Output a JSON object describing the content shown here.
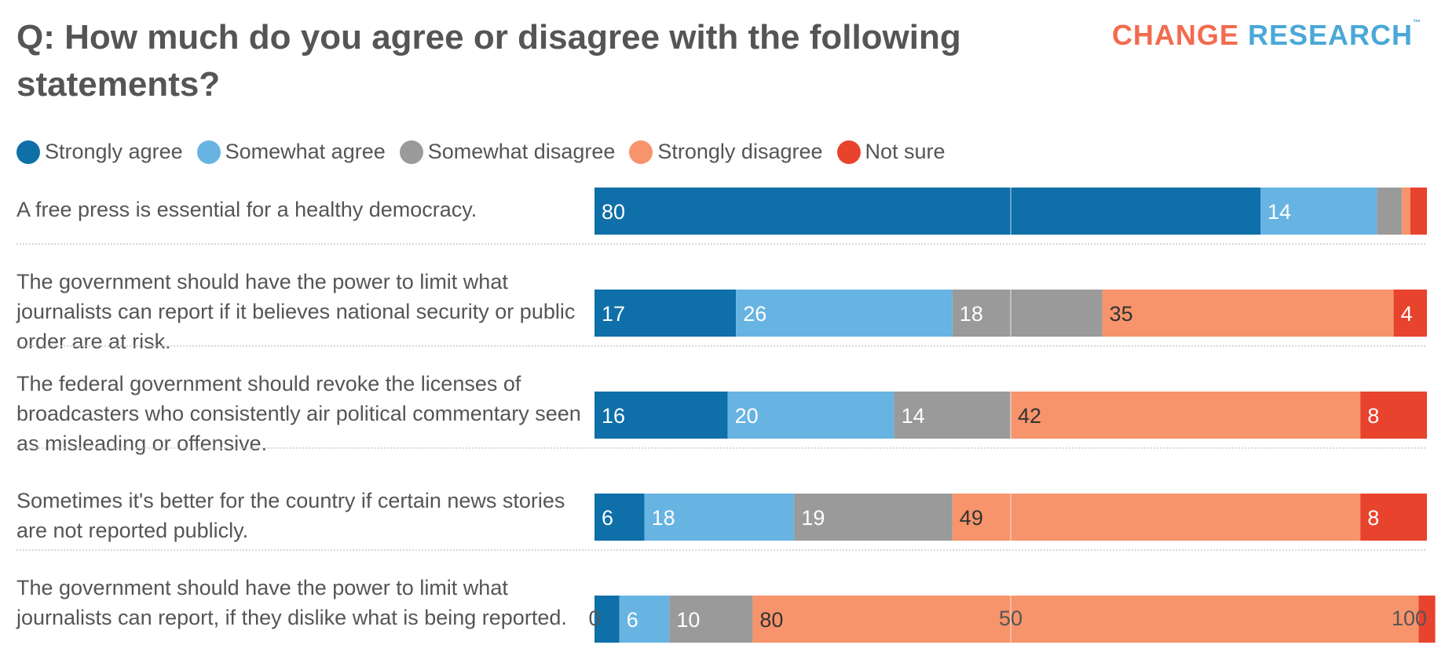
{
  "title": "Q: How much do you agree or disagree with the following statements?",
  "logo": {
    "part1": "CHANGE",
    "part2": "RESEARCH",
    "tm": "™"
  },
  "chart_data": {
    "type": "bar",
    "orientation": "horizontal-stacked",
    "title": "Q: How much do you agree or disagree with the following statements?",
    "legend_placement": "top-left",
    "xlim": [
      0,
      100
    ],
    "xticks": [
      0,
      50,
      100
    ],
    "gridlines": [
      50
    ],
    "categories": [
      "A free press is essential for a healthy democracy.",
      "The government should have the power to limit what journalists can report if it believes national security or public order are at risk.",
      "The federal government should revoke the licenses of broadcasters who consistently air political commentary seen as misleading or offensive.",
      "Sometimes it's better for the country if certain news stories are not reported publicly.",
      "The government should have the power to limit what journalists can report, if they dislike what is being reported."
    ],
    "series": [
      {
        "name": "Strongly agree",
        "color": "#0f6fa8",
        "label_color": "#ffffff",
        "values": [
          80,
          17,
          16,
          6,
          3
        ]
      },
      {
        "name": "Somewhat agree",
        "color": "#67b4e3",
        "label_color": "#ffffff",
        "values": [
          14,
          26,
          20,
          18,
          6
        ]
      },
      {
        "name": "Somewhat disagree",
        "color": "#9a9a9a",
        "label_color": "#ffffff",
        "values": [
          3,
          18,
          14,
          19,
          10
        ]
      },
      {
        "name": "Strongly disagree",
        "color": "#f7946b",
        "label_color": "#333333",
        "values": [
          1,
          35,
          42,
          49,
          80
        ]
      },
      {
        "name": "Not sure",
        "color": "#e8432d",
        "label_color": "#ffffff",
        "values": [
          2,
          4,
          8,
          8,
          2
        ]
      }
    ],
    "shown_labels": [
      [
        80,
        14,
        null,
        null,
        null
      ],
      [
        17,
        26,
        18,
        35,
        4
      ],
      [
        16,
        20,
        14,
        42,
        8
      ],
      [
        6,
        18,
        19,
        49,
        8
      ],
      [
        null,
        6,
        10,
        80,
        null
      ]
    ]
  }
}
